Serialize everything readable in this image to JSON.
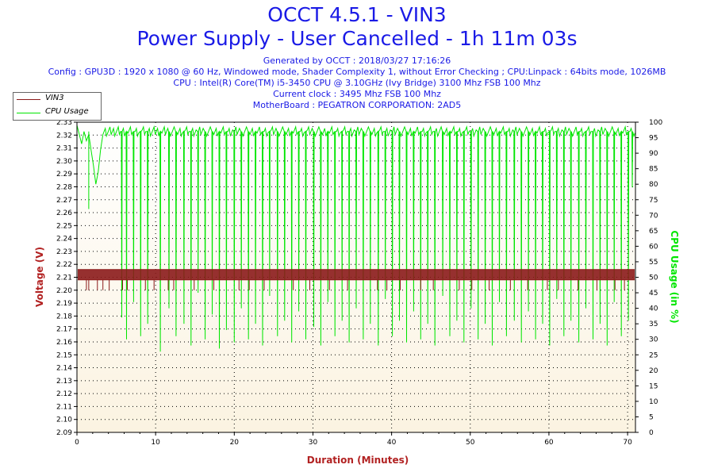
{
  "header": {
    "title_line1": "OCCT 4.5.1 - VIN3",
    "title_line2": "Power Supply - User Cancelled - 1h 11m 03s",
    "info_lines": [
      "Generated by OCCT : 2018/03/27 17:16:26",
      "Config : GPU3D : 1920 x 1080 @ 60 Hz, Windowed mode, Shader Complexity 1, without Error Checking ; CPU:Linpack : 64bits mode, 1026MB",
      "CPU : Intel(R) Core(TM) i5-3450 CPU @ 3.10GHz (Ivy Bridge) 3100 Mhz FSB 100 Mhz",
      "Current clock : 3495 Mhz FSB 100 Mhz",
      "MotherBoard : PEGATRON CORPORATION: 2AD5"
    ]
  },
  "legend": {
    "items": [
      {
        "label": "VIN3",
        "color": "#8b1a1a"
      },
      {
        "label": "CPU Usage",
        "color": "#00e600"
      }
    ]
  },
  "chart_data": {
    "type": "line",
    "xlabel": "Duration (Minutes)",
    "ylabel": "Voltage (V)",
    "y2label": "CPU Usage (in %)",
    "xlim": [
      0,
      71
    ],
    "xticks": [
      0,
      10,
      20,
      30,
      40,
      50,
      60,
      70
    ],
    "ylim": [
      2.09,
      2.33
    ],
    "yticks": [
      2.09,
      2.1,
      2.11,
      2.12,
      2.13,
      2.14,
      2.15,
      2.16,
      2.17,
      2.18,
      2.19,
      2.2,
      2.21,
      2.22,
      2.23,
      2.24,
      2.25,
      2.26,
      2.27,
      2.28,
      2.29,
      2.3,
      2.31,
      2.32,
      2.33
    ],
    "y2lim": [
      0,
      100
    ],
    "y2ticks": [
      0,
      5,
      10,
      15,
      20,
      25,
      30,
      35,
      40,
      45,
      50,
      55,
      60,
      65,
      70,
      75,
      80,
      85,
      90,
      95,
      100
    ],
    "grid": true,
    "legend_position": "top-left",
    "series": [
      {
        "name": "VIN3",
        "axis": "left",
        "color": "#8b1a1a",
        "level_low": 2.208,
        "level_high": 2.216,
        "dip_value": 2.2,
        "dip_x": [
          1.2,
          1.5,
          2.6,
          3.3,
          4.1,
          5.8,
          6.4,
          8.7,
          9.8,
          11.6,
          12.3,
          14.9,
          17.4,
          20.6,
          21.9,
          23.8,
          27.5,
          29.6,
          32.1,
          34.4,
          38.2,
          39.4,
          41.1,
          43.7,
          45.3,
          48.6,
          50.2,
          52.4,
          55.1,
          57.3,
          59.8,
          61.2,
          63.7,
          66.1,
          68.4,
          69.6
        ]
      },
      {
        "name": "CPU Usage",
        "axis": "right",
        "color": "#00e600",
        "baseline": 97,
        "start_segment": [
          [
            0,
            99
          ],
          [
            0.3,
            96
          ],
          [
            0.6,
            93
          ],
          [
            0.9,
            97
          ],
          [
            1.2,
            94
          ],
          [
            1.5,
            96
          ],
          [
            1.8,
            91
          ],
          [
            2.1,
            86
          ],
          [
            2.4,
            80
          ],
          [
            2.7,
            84
          ],
          [
            3.0,
            91
          ],
          [
            3.3,
            96
          ],
          [
            3.6,
            98
          ]
        ],
        "dips": [
          [
            1.5,
            72
          ],
          [
            5.7,
            37
          ],
          [
            6.3,
            30
          ],
          [
            7.2,
            42
          ],
          [
            8.1,
            31
          ],
          [
            9.0,
            35
          ],
          [
            10.6,
            26
          ],
          [
            11.7,
            40
          ],
          [
            12.6,
            31
          ],
          [
            13.6,
            35
          ],
          [
            14.5,
            28
          ],
          [
            15.4,
            45
          ],
          [
            16.3,
            30
          ],
          [
            17.2,
            38
          ],
          [
            18.1,
            27
          ],
          [
            19.0,
            33
          ],
          [
            20.0,
            29
          ],
          [
            20.9,
            40
          ],
          [
            21.8,
            30
          ],
          [
            22.7,
            35
          ],
          [
            23.6,
            28
          ],
          [
            24.5,
            44
          ],
          [
            25.5,
            31
          ],
          [
            26.4,
            36
          ],
          [
            27.3,
            29
          ],
          [
            28.2,
            39
          ],
          [
            29.1,
            30
          ],
          [
            30.1,
            34
          ],
          [
            31.0,
            28
          ],
          [
            31.9,
            42
          ],
          [
            32.8,
            31
          ],
          [
            33.7,
            36
          ],
          [
            34.6,
            29
          ],
          [
            35.5,
            40
          ],
          [
            36.4,
            30
          ],
          [
            37.3,
            35
          ],
          [
            38.3,
            28
          ],
          [
            39.2,
            43
          ],
          [
            40.1,
            31
          ],
          [
            41.0,
            36
          ],
          [
            41.9,
            29
          ],
          [
            42.8,
            39
          ],
          [
            43.7,
            30
          ],
          [
            44.6,
            35
          ],
          [
            45.5,
            28
          ],
          [
            46.5,
            44
          ],
          [
            47.4,
            31
          ],
          [
            48.3,
            36
          ],
          [
            49.2,
            29
          ],
          [
            50.1,
            40
          ],
          [
            51.0,
            30
          ],
          [
            51.9,
            35
          ],
          [
            52.8,
            28
          ],
          [
            53.7,
            42
          ],
          [
            54.6,
            31
          ],
          [
            55.6,
            36
          ],
          [
            56.5,
            29
          ],
          [
            57.4,
            39
          ],
          [
            58.3,
            30
          ],
          [
            59.2,
            35
          ],
          [
            60.1,
            28
          ],
          [
            61.0,
            43
          ],
          [
            61.9,
            31
          ],
          [
            62.8,
            36
          ],
          [
            63.8,
            29
          ],
          [
            64.7,
            40
          ],
          [
            65.6,
            30
          ],
          [
            66.5,
            35
          ],
          [
            67.4,
            28
          ],
          [
            68.3,
            42
          ],
          [
            69.2,
            31
          ],
          [
            70.1,
            36
          ],
          [
            70.6,
            79
          ]
        ]
      }
    ]
  }
}
